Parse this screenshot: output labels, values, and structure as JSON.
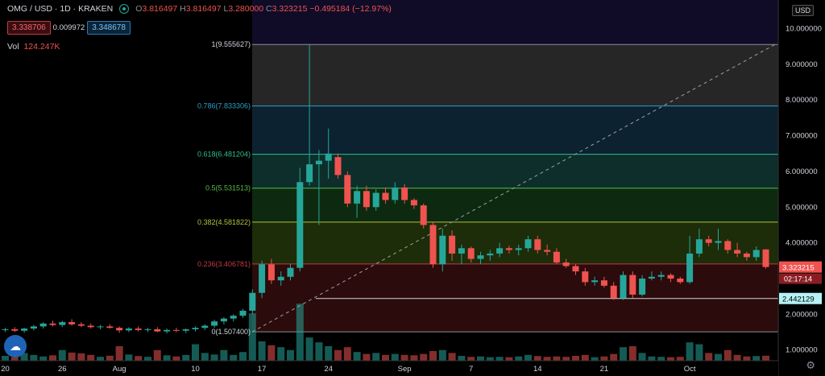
{
  "header": {
    "symbol": "OMG / USD · 1D · KRAKEN",
    "open_label": "O",
    "open": "3.816497",
    "high_label": "H",
    "high": "3.816497",
    "low_label": "L",
    "low": "3.280000",
    "close_label": "C",
    "close": "3.323215",
    "change": "−0.495184 (−12.97%)",
    "bid": "3.338706",
    "spread": "0.009972",
    "ask": "3.348678",
    "volume_label": "Vol",
    "volume": "124.247K"
  },
  "currency_button": "USD",
  "colors": {
    "up": "#26a69a",
    "down": "#ef5350",
    "background": "#000000"
  },
  "icons": {
    "logo": "tradingview-cloud-icon",
    "settings": "gear-icon",
    "status": "market-status-icon"
  },
  "chart_data": {
    "type": "candlestick",
    "ylim": [
      0.7,
      10.8
    ],
    "x_tick_labels": [
      "20",
      "26",
      "Aug",
      "10",
      "17",
      "24",
      "Sep",
      "7",
      "14",
      "21",
      "Oct"
    ],
    "x_tick_index": [
      0,
      6,
      12,
      20,
      27,
      34,
      42,
      49,
      56,
      63,
      72
    ],
    "y_ticks": [
      "1.000000",
      "2.000000",
      "3.000000",
      "4.000000",
      "5.000000",
      "6.000000",
      "7.000000",
      "8.000000",
      "9.000000",
      "10.000000"
    ],
    "y_tick_values": [
      1,
      2,
      3,
      4,
      5,
      6,
      7,
      8,
      9,
      10
    ],
    "last_price_label": "3.323215",
    "countdown_label": "02:17:14",
    "horizontal_line_label": "2.442129",
    "horizontal_line_value": 2.442129,
    "fibonacci": {
      "levels": [
        {
          "ratio": 1,
          "value": 9.555627,
          "label": "1(9.555627)"
        },
        {
          "ratio": 0.786,
          "value": 7.833306,
          "label": "0.786(7.833306)"
        },
        {
          "ratio": 0.618,
          "value": 6.481204,
          "label": "0.618(6.481204)"
        },
        {
          "ratio": 0.5,
          "value": 5.531513,
          "label": "0.5(5.531513)"
        },
        {
          "ratio": 0.382,
          "value": 4.581822,
          "label": "0.382(4.581822)"
        },
        {
          "ratio": 0.236,
          "value": 3.406781,
          "label": "0.236(3.406781)"
        },
        {
          "ratio": 0,
          "value": 1.5074,
          "label": "0(1.507400)"
        }
      ],
      "band_colors": [
        "#262626",
        "#0c2230",
        "#0d2e2a",
        "#0d2a10",
        "#1d2c09",
        "#2b0b0b"
      ],
      "line_colors": [
        "#8a8f99",
        "#2aa0c7",
        "#2fbf8f",
        "#58b947",
        "#b0c23c",
        "#c23b43",
        "#8a8f99"
      ]
    },
    "candles": [
      {
        "o": 1.56,
        "h": 1.62,
        "l": 1.5,
        "c": 1.58,
        "v": 0.25
      },
      {
        "o": 1.58,
        "h": 1.64,
        "l": 1.5,
        "c": 1.54,
        "v": 0.18
      },
      {
        "o": 1.54,
        "h": 1.62,
        "l": 1.48,
        "c": 1.6,
        "v": 0.4
      },
      {
        "o": 1.6,
        "h": 1.7,
        "l": 1.55,
        "c": 1.66,
        "v": 0.3
      },
      {
        "o": 1.66,
        "h": 1.78,
        "l": 1.6,
        "c": 1.74,
        "v": 0.22
      },
      {
        "o": 1.74,
        "h": 1.82,
        "l": 1.66,
        "c": 1.7,
        "v": 0.28
      },
      {
        "o": 1.7,
        "h": 1.82,
        "l": 1.64,
        "c": 1.78,
        "v": 0.55
      },
      {
        "o": 1.78,
        "h": 1.86,
        "l": 1.68,
        "c": 1.72,
        "v": 0.42
      },
      {
        "o": 1.72,
        "h": 1.78,
        "l": 1.64,
        "c": 1.68,
        "v": 0.38
      },
      {
        "o": 1.68,
        "h": 1.74,
        "l": 1.6,
        "c": 1.64,
        "v": 0.3
      },
      {
        "o": 1.64,
        "h": 1.7,
        "l": 1.58,
        "c": 1.66,
        "v": 0.2
      },
      {
        "o": 1.66,
        "h": 1.72,
        "l": 1.6,
        "c": 1.62,
        "v": 0.26
      },
      {
        "o": 1.62,
        "h": 1.66,
        "l": 1.48,
        "c": 1.55,
        "v": 0.75
      },
      {
        "o": 1.55,
        "h": 1.64,
        "l": 1.5,
        "c": 1.6,
        "v": 0.32
      },
      {
        "o": 1.6,
        "h": 1.66,
        "l": 1.52,
        "c": 1.56,
        "v": 0.24
      },
      {
        "o": 1.56,
        "h": 1.62,
        "l": 1.5,
        "c": 1.58,
        "v": 0.2
      },
      {
        "o": 1.58,
        "h": 1.64,
        "l": 1.5,
        "c": 1.52,
        "v": 0.55
      },
      {
        "o": 1.52,
        "h": 1.6,
        "l": 1.46,
        "c": 1.56,
        "v": 0.28
      },
      {
        "o": 1.56,
        "h": 1.62,
        "l": 1.5,
        "c": 1.54,
        "v": 0.22
      },
      {
        "o": 1.54,
        "h": 1.6,
        "l": 1.48,
        "c": 1.58,
        "v": 0.3
      },
      {
        "o": 1.58,
        "h": 1.66,
        "l": 1.52,
        "c": 1.62,
        "v": 0.85
      },
      {
        "o": 1.62,
        "h": 1.72,
        "l": 1.56,
        "c": 1.68,
        "v": 0.4
      },
      {
        "o": 1.68,
        "h": 1.85,
        "l": 1.62,
        "c": 1.8,
        "v": 0.32
      },
      {
        "o": 1.8,
        "h": 1.92,
        "l": 1.72,
        "c": 1.88,
        "v": 0.55
      },
      {
        "o": 1.88,
        "h": 2.0,
        "l": 1.8,
        "c": 1.96,
        "v": 0.3
      },
      {
        "o": 1.96,
        "h": 2.15,
        "l": 1.9,
        "c": 2.1,
        "v": 0.45
      },
      {
        "o": 2.1,
        "h": 2.7,
        "l": 2.0,
        "c": 2.6,
        "v": 2.45
      },
      {
        "o": 2.6,
        "h": 3.5,
        "l": 2.45,
        "c": 3.4,
        "v": 1.0
      },
      {
        "o": 3.4,
        "h": 3.55,
        "l": 2.85,
        "c": 2.95,
        "v": 0.8
      },
      {
        "o": 2.95,
        "h": 3.2,
        "l": 2.8,
        "c": 3.05,
        "v": 0.7
      },
      {
        "o": 3.05,
        "h": 3.4,
        "l": 2.95,
        "c": 3.3,
        "v": 0.55
      },
      {
        "o": 3.3,
        "h": 6.1,
        "l": 3.2,
        "c": 5.7,
        "v": 2.95
      },
      {
        "o": 5.7,
        "h": 9.55,
        "l": 5.6,
        "c": 6.2,
        "v": 1.2
      },
      {
        "o": 6.2,
        "h": 6.6,
        "l": 4.5,
        "c": 6.3,
        "v": 0.95
      },
      {
        "o": 6.3,
        "h": 7.2,
        "l": 5.8,
        "c": 6.5,
        "v": 0.75
      },
      {
        "o": 6.4,
        "h": 6.5,
        "l": 5.8,
        "c": 5.9,
        "v": 0.55
      },
      {
        "o": 5.9,
        "h": 6.0,
        "l": 5.0,
        "c": 5.1,
        "v": 0.7
      },
      {
        "o": 5.1,
        "h": 5.6,
        "l": 4.7,
        "c": 5.45,
        "v": 0.45
      },
      {
        "o": 5.45,
        "h": 5.6,
        "l": 4.9,
        "c": 5.0,
        "v": 0.35
      },
      {
        "o": 5.0,
        "h": 5.5,
        "l": 4.9,
        "c": 5.4,
        "v": 0.4
      },
      {
        "o": 5.4,
        "h": 5.55,
        "l": 5.1,
        "c": 5.2,
        "v": 0.3
      },
      {
        "o": 5.2,
        "h": 5.7,
        "l": 5.1,
        "c": 5.55,
        "v": 0.35
      },
      {
        "o": 5.55,
        "h": 5.65,
        "l": 5.1,
        "c": 5.2,
        "v": 0.3
      },
      {
        "o": 5.2,
        "h": 5.25,
        "l": 4.95,
        "c": 5.05,
        "v": 0.28
      },
      {
        "o": 5.05,
        "h": 5.1,
        "l": 4.4,
        "c": 4.5,
        "v": 0.35
      },
      {
        "o": 4.5,
        "h": 4.6,
        "l": 3.3,
        "c": 3.4,
        "v": 0.5
      },
      {
        "o": 3.4,
        "h": 4.4,
        "l": 3.2,
        "c": 4.2,
        "v": 0.55
      },
      {
        "o": 4.2,
        "h": 4.35,
        "l": 3.5,
        "c": 3.7,
        "v": 0.4
      },
      {
        "o": 3.7,
        "h": 3.95,
        "l": 3.4,
        "c": 3.85,
        "v": 0.25
      },
      {
        "o": 3.85,
        "h": 3.9,
        "l": 3.45,
        "c": 3.55,
        "v": 0.2
      },
      {
        "o": 3.55,
        "h": 3.75,
        "l": 3.4,
        "c": 3.65,
        "v": 0.22
      },
      {
        "o": 3.65,
        "h": 3.8,
        "l": 3.5,
        "c": 3.7,
        "v": 0.18
      },
      {
        "o": 3.7,
        "h": 4.0,
        "l": 3.6,
        "c": 3.85,
        "v": 0.2
      },
      {
        "o": 3.85,
        "h": 3.92,
        "l": 3.7,
        "c": 3.8,
        "v": 0.18
      },
      {
        "o": 3.8,
        "h": 3.95,
        "l": 3.65,
        "c": 3.85,
        "v": 0.22
      },
      {
        "o": 3.85,
        "h": 4.2,
        "l": 3.75,
        "c": 4.1,
        "v": 0.3
      },
      {
        "o": 4.1,
        "h": 4.2,
        "l": 3.7,
        "c": 3.8,
        "v": 0.24
      },
      {
        "o": 3.8,
        "h": 3.95,
        "l": 3.65,
        "c": 3.75,
        "v": 0.2
      },
      {
        "o": 3.75,
        "h": 3.85,
        "l": 3.4,
        "c": 3.45,
        "v": 0.22
      },
      {
        "o": 3.45,
        "h": 3.55,
        "l": 3.3,
        "c": 3.35,
        "v": 0.2
      },
      {
        "o": 3.35,
        "h": 3.4,
        "l": 3.1,
        "c": 3.2,
        "v": 0.25
      },
      {
        "o": 3.2,
        "h": 3.3,
        "l": 2.8,
        "c": 2.9,
        "v": 0.3
      },
      {
        "o": 2.9,
        "h": 3.05,
        "l": 2.8,
        "c": 2.95,
        "v": 0.18
      },
      {
        "o": 2.95,
        "h": 3.05,
        "l": 2.75,
        "c": 2.8,
        "v": 0.22
      },
      {
        "o": 2.8,
        "h": 2.9,
        "l": 2.4,
        "c": 2.45,
        "v": 0.35
      },
      {
        "o": 2.45,
        "h": 3.2,
        "l": 2.4,
        "c": 3.1,
        "v": 0.7
      },
      {
        "o": 3.1,
        "h": 3.2,
        "l": 2.45,
        "c": 2.55,
        "v": 0.75
      },
      {
        "o": 2.55,
        "h": 3.1,
        "l": 2.5,
        "c": 3.0,
        "v": 0.4
      },
      {
        "o": 3.0,
        "h": 3.2,
        "l": 2.95,
        "c": 3.05,
        "v": 0.22
      },
      {
        "o": 3.05,
        "h": 3.2,
        "l": 2.95,
        "c": 3.1,
        "v": 0.2
      },
      {
        "o": 3.1,
        "h": 3.15,
        "l": 2.9,
        "c": 3.0,
        "v": 0.18
      },
      {
        "o": 3.0,
        "h": 3.05,
        "l": 2.85,
        "c": 2.9,
        "v": 0.2
      },
      {
        "o": 2.9,
        "h": 4.2,
        "l": 2.85,
        "c": 3.7,
        "v": 0.95
      },
      {
        "o": 3.7,
        "h": 4.4,
        "l": 3.6,
        "c": 4.1,
        "v": 0.85
      },
      {
        "o": 4.1,
        "h": 4.2,
        "l": 3.9,
        "c": 4.0,
        "v": 0.4
      },
      {
        "o": 4.0,
        "h": 4.4,
        "l": 3.8,
        "c": 4.05,
        "v": 0.35
      },
      {
        "o": 4.05,
        "h": 4.1,
        "l": 3.7,
        "c": 3.8,
        "v": 0.55
      },
      {
        "o": 3.8,
        "h": 4.0,
        "l": 3.6,
        "c": 3.7,
        "v": 0.3
      },
      {
        "o": 3.7,
        "h": 3.75,
        "l": 3.5,
        "c": 3.6,
        "v": 0.22
      },
      {
        "o": 3.6,
        "h": 3.9,
        "l": 3.5,
        "c": 3.8,
        "v": 0.24
      },
      {
        "o": 3.816497,
        "h": 3.816497,
        "l": 3.28,
        "c": 3.323215,
        "v": 0.26
      }
    ]
  }
}
